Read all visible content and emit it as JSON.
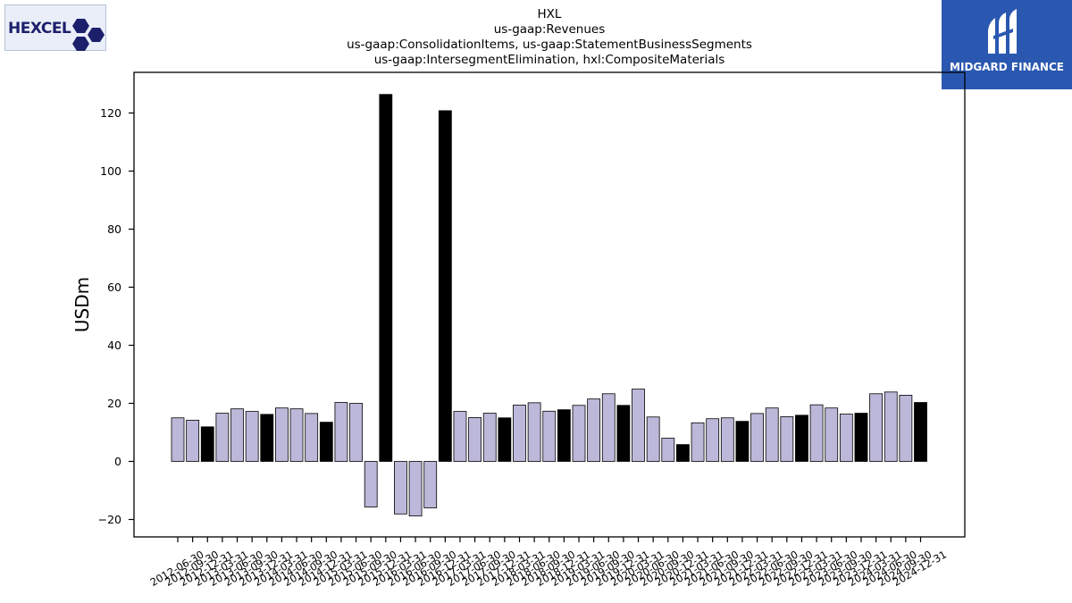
{
  "logos": {
    "left_text": "HEXCEL",
    "right_text": "MIDGARD FINANCE"
  },
  "chart_data": {
    "type": "bar",
    "title_lines": [
      "HXL",
      "us-gaap:Revenues",
      "us-gaap:ConsolidationItems, us-gaap:StatementBusinessSegments",
      "us-gaap:IntersegmentElimination, hxl:CompositeMaterials"
    ],
    "xlabel": "",
    "ylabel": "USDm",
    "ylim": [
      -26,
      134
    ],
    "yticks": [
      -20,
      0,
      20,
      40,
      60,
      80,
      100,
      120
    ],
    "grid": false,
    "colors": {
      "quarter": "#bcb8d9",
      "annual": "#000000",
      "edge": "#000000"
    },
    "categories": [
      "2012-06-30",
      "2012-09-30",
      "2012-12-31",
      "2013-03-31",
      "2013-06-30",
      "2013-09-30",
      "2013-12-31",
      "2014-03-31",
      "2014-06-30",
      "2014-09-30",
      "2014-12-31",
      "2015-03-31",
      "2015-06-30",
      "2015-09-30",
      "2015-12-31",
      "2016-03-31",
      "2016-06-30",
      "2016-09-30",
      "2016-12-31",
      "2017-03-31",
      "2017-06-30",
      "2017-09-30",
      "2017-12-31",
      "2018-03-31",
      "2018-06-30",
      "2018-09-30",
      "2018-12-31",
      "2019-03-31",
      "2019-06-30",
      "2019-09-30",
      "2019-12-31",
      "2020-03-31",
      "2020-06-30",
      "2020-09-30",
      "2020-12-31",
      "2021-03-31",
      "2021-06-30",
      "2021-09-30",
      "2021-12-31",
      "2022-03-31",
      "2022-06-30",
      "2022-09-30",
      "2022-12-31",
      "2023-03-31",
      "2023-06-30",
      "2023-09-30",
      "2023-12-31",
      "2024-03-31",
      "2024-06-30",
      "2024-09-30",
      "2024-12-31"
    ],
    "values": [
      15.0,
      14.2,
      11.9,
      16.6,
      18.1,
      17.2,
      16.2,
      18.4,
      18.1,
      16.5,
      13.5,
      20.3,
      20.0,
      -15.7,
      126.4,
      -18.1,
      -18.8,
      -16.0,
      120.8,
      17.2,
      15.1,
      16.6,
      15.0,
      19.4,
      20.2,
      17.3,
      17.8,
      19.3,
      21.5,
      23.3,
      19.3,
      24.9,
      15.3,
      8.0,
      5.8,
      13.3,
      14.7,
      15.0,
      13.8,
      16.5,
      18.4,
      15.4,
      15.9,
      19.5,
      18.4,
      16.3,
      16.6,
      23.3,
      23.9,
      22.8,
      20.3
    ],
    "annual": [
      false,
      false,
      true,
      false,
      false,
      false,
      true,
      false,
      false,
      false,
      true,
      false,
      false,
      false,
      true,
      false,
      false,
      false,
      true,
      false,
      false,
      false,
      true,
      false,
      false,
      false,
      true,
      false,
      false,
      false,
      true,
      false,
      false,
      false,
      true,
      false,
      false,
      false,
      true,
      false,
      false,
      false,
      true,
      false,
      false,
      false,
      true,
      false,
      false,
      false,
      true
    ],
    "xtick_labels_shown": [
      "2012-06-30",
      "2012-09-30",
      "2012-12-31",
      "2013-03-31",
      "2013-06-30",
      "2013-09-30",
      "2013-12-31",
      "2014-03-31",
      "2014-06-30",
      "2014-09-30",
      "2014-12-31",
      "2015-03-31",
      "2015-06-30",
      "2015-09-30",
      "2015-12-31",
      "2016-03-31",
      "2016-06-30",
      "2016-09-30",
      "2016-12-31",
      "2017-03-31",
      "2017-06-30",
      "2017-09-30",
      "2017-12-31",
      "2018-03-31",
      "2018-06-30",
      "2018-09-30",
      "2018-12-31",
      "2019-03-31",
      "2019-06-30",
      "2019-09-30",
      "2019-12-31",
      "2020-03-31",
      "2020-06-30",
      "2020-09-30",
      "2020-12-31",
      "2021-03-31",
      "2021-06-30",
      "2021-09-30",
      "2021-12-31",
      "2022-03-31",
      "2022-06-30",
      "2022-09-30",
      "2022-12-31",
      "2023-03-31",
      "2023-06-30",
      "2023-09-30",
      "2023-12-31",
      "2024-03-31",
      "2024-06-30",
      "2024-09-30",
      "2024-12-31"
    ]
  }
}
